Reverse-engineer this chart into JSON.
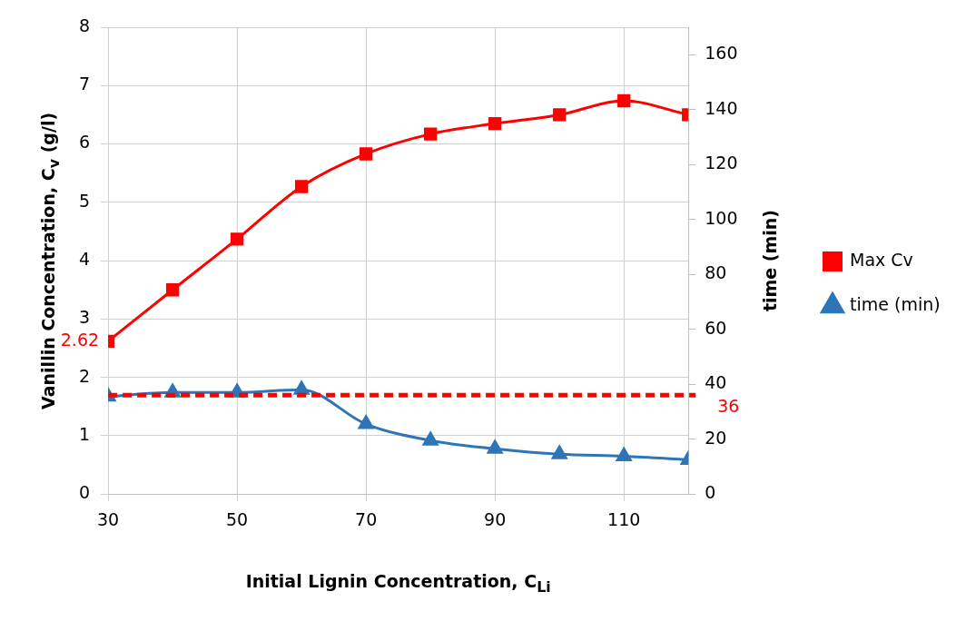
{
  "chart_data": {
    "type": "line",
    "xlabel": "Initial Lignin Concentration, C$_{Li}$",
    "ylabel": "Vanillin Concentration, C$_{v}$ (g/l)",
    "y2label": "time (min)",
    "x": [
      30,
      40,
      50,
      60,
      70,
      80,
      90,
      100,
      110,
      120
    ],
    "series": [
      {
        "name": "Max Cv",
        "color": "#ff0000",
        "marker": "square",
        "values": [
          2.62,
          3.5,
          4.37,
          5.27,
          5.83,
          6.17,
          6.35,
          6.5,
          6.74,
          6.5
        ]
      },
      {
        "name": "time (min)",
        "color": "#2e75b6",
        "marker": "triangle",
        "axis": "y2",
        "values": [
          35.5,
          37,
          37,
          38,
          25.5,
          19.5,
          16.5,
          14.5,
          13.8,
          12.5
        ]
      }
    ],
    "xlim": [
      30,
      120
    ],
    "xticks": [
      30,
      50,
      70,
      90,
      110
    ],
    "ylim": [
      0,
      8
    ],
    "yticks": [
      0,
      1,
      2,
      3,
      4,
      5,
      6,
      7,
      8
    ],
    "y2lim": [
      0,
      170
    ],
    "y2ticks": [
      0,
      20,
      40,
      60,
      80,
      100,
      120,
      140,
      160
    ],
    "ref_lines": [
      {
        "axis": "y2",
        "value": 36,
        "label": "36",
        "color": "#ff0000",
        "line_style": "dashed"
      }
    ],
    "annotations": [
      {
        "text": "2.62",
        "x": 30,
        "y": 2.62
      }
    ],
    "grid": true,
    "legend": "right"
  }
}
